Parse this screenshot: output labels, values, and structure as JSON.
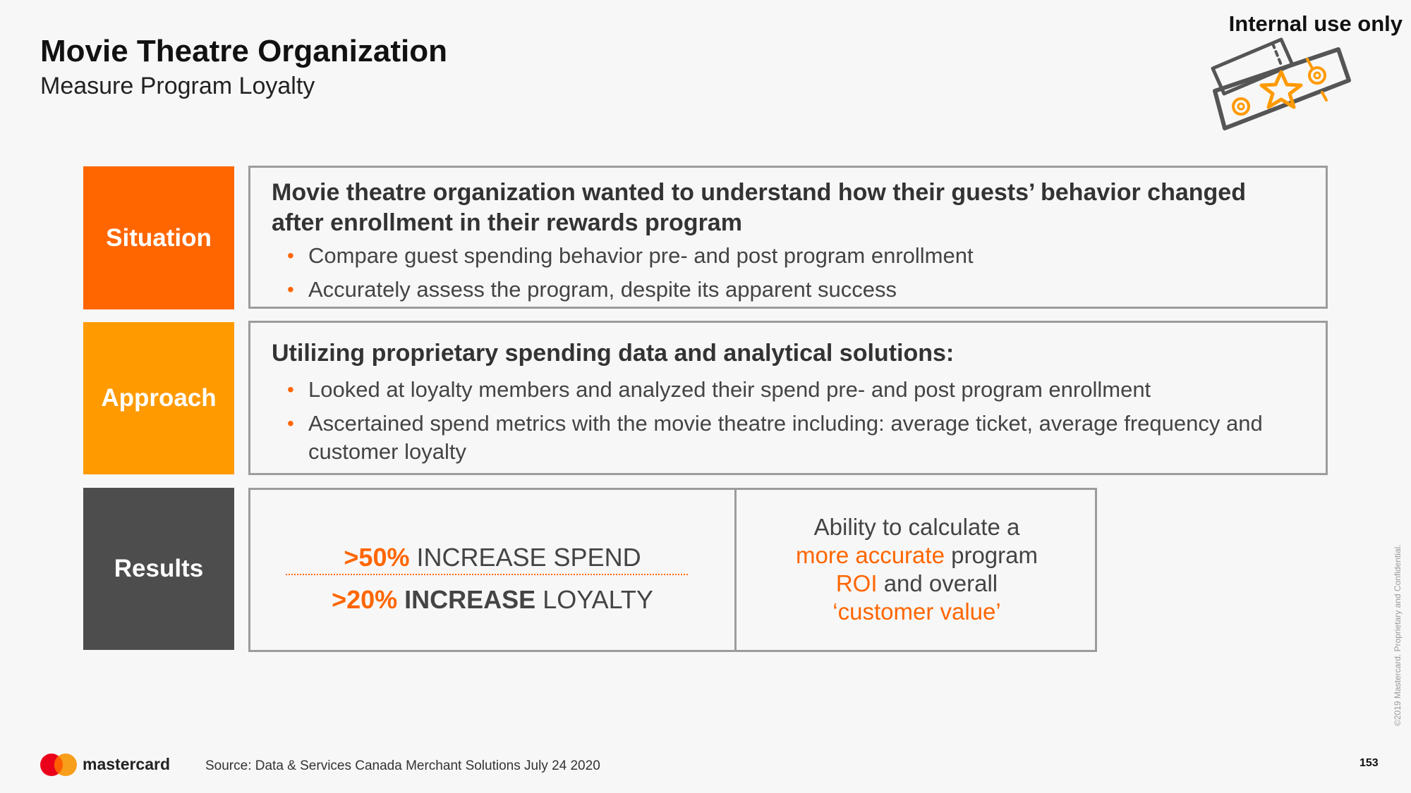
{
  "header": {
    "title": "Movie Theatre Organization",
    "subtitle": "Measure Program Loyalty",
    "internal_label": "Internal use only",
    "ticket_icon": "ticket-star-icon"
  },
  "colors": {
    "orange": "#ff6600",
    "amber": "#ff9a00",
    "dark_gray": "#4d4d4d",
    "border_gray": "#9c9c9c"
  },
  "situation": {
    "label": "Situation",
    "heading": "Movie theatre organization wanted to understand how their guests’ behavior changed after enrollment in their rewards program",
    "bullets": [
      "Compare guest spending behavior pre- and post program enrollment",
      "Accurately assess the program, despite its apparent success"
    ]
  },
  "approach": {
    "label": "Approach",
    "heading": "Utilizing proprietary spending data and analytical solutions:",
    "bullets": [
      "Looked at loyalty members and analyzed their spend pre- and post program enrollment",
      "Ascertained spend metrics with the movie theatre including: average ticket, average frequency and customer loyalty"
    ]
  },
  "results": {
    "label": "Results",
    "spend_pct": ">50%",
    "spend_text": "INCREASE SPEND",
    "loyalty_pct": ">20%",
    "loyalty_bold": "INCREASE",
    "loyalty_text": "LOYALTY",
    "ability_1": "Ability to calculate a",
    "ability_hl_1": "more accurate",
    "ability_2": "program",
    "ability_hl_2": "ROI",
    "ability_3": "and overall",
    "ability_hl_3": "‘customer value’"
  },
  "footer": {
    "brand": "mastercard",
    "source": "Source: Data & Services Canada Merchant Solutions July 24 2020",
    "page_number": "153",
    "copyright": "©2019 Mastercard. Proprietary and Confidential."
  }
}
